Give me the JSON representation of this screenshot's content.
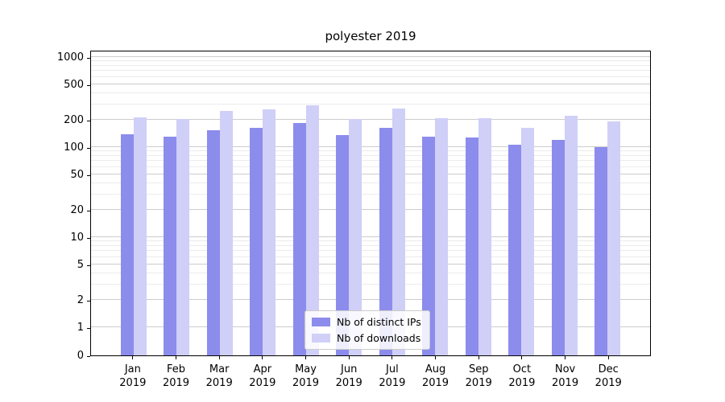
{
  "chart_data": {
    "type": "bar",
    "title": "polyester 2019",
    "categories": [
      "Jan 2019",
      "Feb 2019",
      "Mar 2019",
      "Apr 2019",
      "May 2019",
      "Jun 2019",
      "Jul 2019",
      "Aug 2019",
      "Sep 2019",
      "Oct 2019",
      "Nov 2019",
      "Dec 2019"
    ],
    "series": [
      {
        "name": "Nb of distinct IPs",
        "color": "#8c8cec",
        "values": [
          140,
          130,
          155,
          165,
          185,
          135,
          165,
          130,
          128,
          107,
          120,
          100
        ]
      },
      {
        "name": "Nb of downloads",
        "color": "#cfcff8",
        "values": [
          215,
          205,
          250,
          265,
          290,
          205,
          270,
          210,
          208,
          165,
          225,
          195
        ]
      }
    ],
    "xlabel": "",
    "ylabel": "",
    "yscale": "symlog",
    "yticks": [
      0,
      1,
      2,
      5,
      10,
      20,
      50,
      100,
      200,
      500,
      1000
    ],
    "ylim": [
      0,
      1200
    ],
    "grid": true,
    "legend_position": "lower center"
  },
  "legend": {
    "items": [
      {
        "label": "Nb of distinct IPs",
        "color": "#8c8cec"
      },
      {
        "label": "Nb of downloads",
        "color": "#cfcff8"
      }
    ]
  }
}
